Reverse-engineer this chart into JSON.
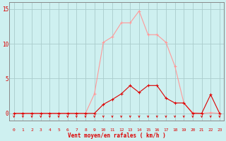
{
  "x": [
    0,
    1,
    2,
    3,
    4,
    5,
    6,
    7,
    8,
    9,
    10,
    11,
    12,
    13,
    14,
    15,
    16,
    17,
    18,
    19,
    20,
    21,
    22,
    23
  ],
  "y_mean": [
    0,
    0,
    0,
    0,
    0,
    0,
    0,
    0,
    0,
    2.8,
    10.2,
    11.0,
    13.0,
    13.0,
    14.7,
    11.3,
    11.3,
    10.2,
    6.8,
    1.5,
    0.1,
    0.0,
    0.1,
    0.0
  ],
  "y_gust": [
    0,
    0,
    0,
    0,
    0,
    0,
    0,
    0,
    0,
    0,
    1.3,
    2.0,
    2.8,
    4.0,
    3.0,
    4.0,
    4.0,
    2.2,
    1.5,
    1.5,
    0.0,
    0.0,
    2.7,
    0.0
  ],
  "color_mean": "#ff9999",
  "color_gust": "#dd0000",
  "bg_color": "#cef0f0",
  "grid_color": "#aacccc",
  "axis_color": "#888888",
  "tick_color": "#dd0000",
  "label_color": "#dd0000",
  "xlabel": "Vent moyen/en rafales ( km/h )",
  "ylabel_ticks": [
    0,
    5,
    10,
    15
  ],
  "xlim": [
    -0.5,
    23.5
  ],
  "ylim": [
    -1.0,
    16.0
  ],
  "xticks": [
    0,
    1,
    2,
    3,
    4,
    5,
    6,
    7,
    8,
    9,
    10,
    11,
    12,
    13,
    14,
    15,
    16,
    17,
    18,
    19,
    20,
    21,
    22,
    23
  ]
}
